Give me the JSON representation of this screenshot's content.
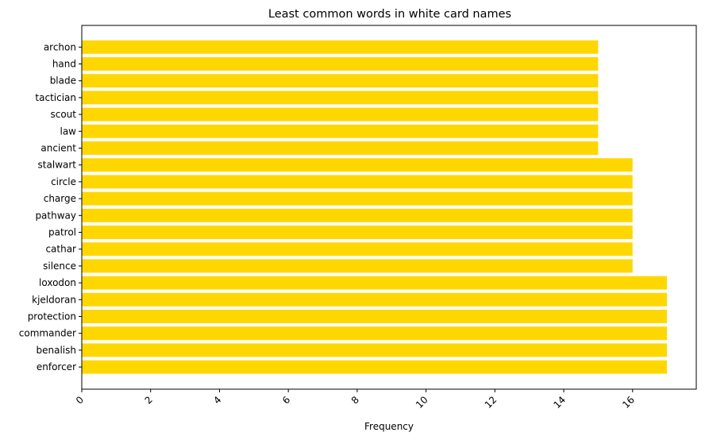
{
  "chart_data": {
    "type": "bar",
    "orientation": "horizontal",
    "title": "Least common words in white card names",
    "xlabel": "Frequency",
    "ylabel": "",
    "categories": [
      "archon",
      "hand",
      "blade",
      "tactician",
      "scout",
      "law",
      "ancient",
      "stalwart",
      "circle",
      "charge",
      "pathway",
      "patrol",
      "cathar",
      "silence",
      "loxodon",
      "kjeldoran",
      "protection",
      "commander",
      "benalish",
      "enforcer"
    ],
    "values": [
      15,
      15,
      15,
      15,
      15,
      15,
      15,
      16,
      16,
      16,
      16,
      16,
      16,
      16,
      17,
      17,
      17,
      17,
      17,
      17
    ],
    "xlim": [
      0,
      17.85
    ],
    "xticks": [
      0,
      2,
      4,
      6,
      8,
      10,
      12,
      14,
      16
    ],
    "xtick_rotation": 45,
    "grid": false,
    "colors": {
      "bar": "#FFD700",
      "axes": "#000000"
    }
  }
}
